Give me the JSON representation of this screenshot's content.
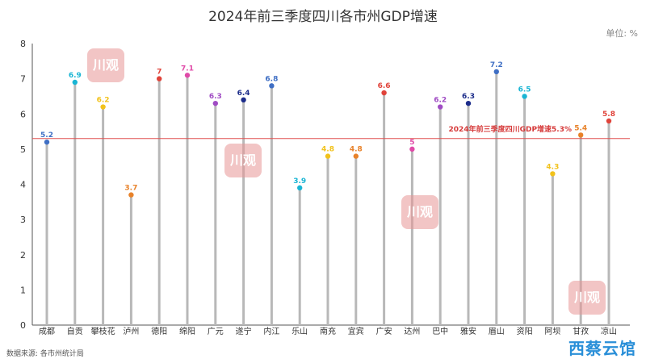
{
  "title": "2024年前三季度四川各市州GDP增速",
  "unit_label": "单位: %",
  "source": "数据来源: 各市州统计局",
  "watermark_text": "川观",
  "brand_text": "西蔡云馆",
  "reference": {
    "label": "2024年前三季度四川GDP增速5.3%",
    "value": 5.3,
    "color": "#e05050"
  },
  "chart_data": {
    "type": "lollipop",
    "categories": [
      "成都",
      "自贡",
      "攀枝花",
      "泸州",
      "德阳",
      "绵阳",
      "广元",
      "遂宁",
      "内江",
      "乐山",
      "南充",
      "宜宾",
      "广安",
      "达州",
      "巴中",
      "雅安",
      "眉山",
      "资阳",
      "阿坝",
      "甘孜",
      "凉山"
    ],
    "values": [
      5.2,
      6.9,
      6.2,
      3.7,
      7,
      7.1,
      6.3,
      6.4,
      6.8,
      3.9,
      4.8,
      4.8,
      6.6,
      5,
      6.2,
      6.3,
      7.2,
      6.5,
      4.3,
      5.4,
      5.8
    ],
    "value_labels": [
      "5.2",
      "6.9",
      "6.2",
      "3.7",
      "7",
      "7.1",
      "6.3",
      "6.4",
      "6.8",
      "3.9",
      "4.8",
      "4.8",
      "6.6",
      "5",
      "6.2",
      "6.3",
      "7.2",
      "6.5",
      "4.3",
      "5.4",
      "5.8"
    ],
    "colors": [
      "#3f6fc4",
      "#19b5d4",
      "#f2c21b",
      "#e8822a",
      "#e0433a",
      "#e04aa8",
      "#a04cc4",
      "#1c2c8a",
      "#3f6fc4",
      "#19b5d4",
      "#f2c21b",
      "#e8822a",
      "#e0433a",
      "#e04aa8",
      "#a04cc4",
      "#1c2c8a",
      "#3f6fc4",
      "#19b5d4",
      "#f2c21b",
      "#e8822a",
      "#e0433a"
    ],
    "y_ticks": [
      "0",
      "1",
      "2",
      "3",
      "4",
      "5",
      "6",
      "7",
      "8"
    ],
    "ylim": [
      0,
      8
    ],
    "grid": false
  }
}
